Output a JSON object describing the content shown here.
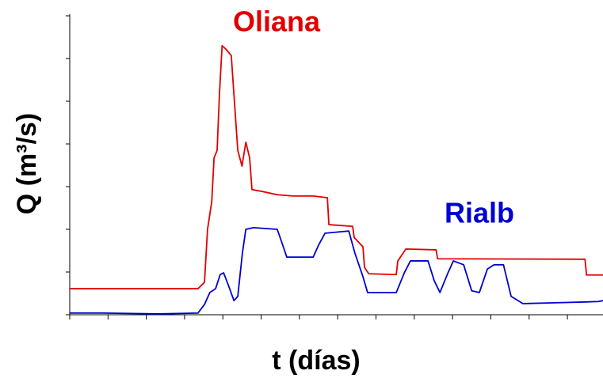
{
  "chart_data": {
    "type": "line",
    "xlabel": "t (días)",
    "ylabel": "Q (m³/s)",
    "annotations": [
      "Oliana",
      "Rialb"
    ],
    "xlim": [
      0,
      13.93
    ],
    "xticks": [
      0,
      1,
      2,
      3,
      4,
      5,
      6,
      7,
      8,
      9,
      10,
      11,
      12,
      13
    ],
    "ylim": [
      0,
      7
    ],
    "yticks": [
      0,
      1,
      2,
      3,
      4,
      5,
      6,
      7
    ],
    "grid": false,
    "series": [
      {
        "name": "Oliana",
        "color": "#e00000",
        "x": [
          0,
          3.35,
          3.52,
          3.6,
          3.71,
          3.77,
          3.85,
          3.91,
          3.98,
          4.08,
          4.22,
          4.29,
          4.39,
          4.5,
          4.6,
          4.7,
          4.76,
          5.01,
          5.42,
          5.84,
          6.36,
          6.73,
          6.77,
          7.39,
          7.43,
          7.66,
          7.7,
          7.81,
          8.53,
          8.57,
          8.78,
          9.57,
          9.61,
          13.46,
          13.5,
          13.93
        ],
        "values": [
          0.61,
          0.61,
          0.76,
          2.0,
          2.65,
          3.67,
          3.85,
          5.15,
          6.3,
          6.22,
          6.07,
          5.15,
          3.85,
          3.48,
          4.04,
          3.67,
          2.93,
          2.89,
          2.81,
          2.78,
          2.78,
          2.74,
          2.11,
          2.07,
          1.81,
          1.59,
          1.11,
          0.96,
          0.94,
          1.26,
          1.54,
          1.52,
          1.31,
          1.3,
          0.93,
          0.93
        ]
      },
      {
        "name": "Rialb",
        "color": "#0000d0",
        "x": [
          0,
          0.87,
          2.32,
          3.35,
          3.52,
          3.66,
          3.81,
          3.93,
          4.02,
          4.14,
          4.29,
          4.39,
          4.51,
          4.6,
          4.8,
          5.42,
          5.53,
          5.67,
          6.36,
          6.5,
          6.67,
          7.29,
          7.45,
          7.66,
          7.78,
          8.53,
          8.74,
          8.9,
          9.36,
          9.52,
          9.67,
          9.88,
          10.02,
          10.29,
          10.5,
          10.7,
          10.91,
          11.08,
          11.33,
          11.53,
          11.84,
          12.67,
          13.5,
          13.81,
          13.93
        ],
        "values": [
          0.04,
          0.04,
          0.02,
          0.04,
          0.24,
          0.52,
          0.61,
          0.94,
          0.98,
          0.7,
          0.33,
          0.43,
          1.44,
          2.0,
          2.04,
          2.0,
          1.72,
          1.35,
          1.35,
          1.63,
          1.91,
          1.96,
          1.44,
          0.89,
          0.52,
          0.52,
          0.98,
          1.26,
          1.26,
          0.8,
          0.52,
          0.98,
          1.26,
          1.17,
          0.56,
          0.52,
          1.07,
          1.17,
          1.17,
          0.43,
          0.26,
          0.28,
          0.3,
          0.31,
          0.33
        ]
      }
    ]
  }
}
